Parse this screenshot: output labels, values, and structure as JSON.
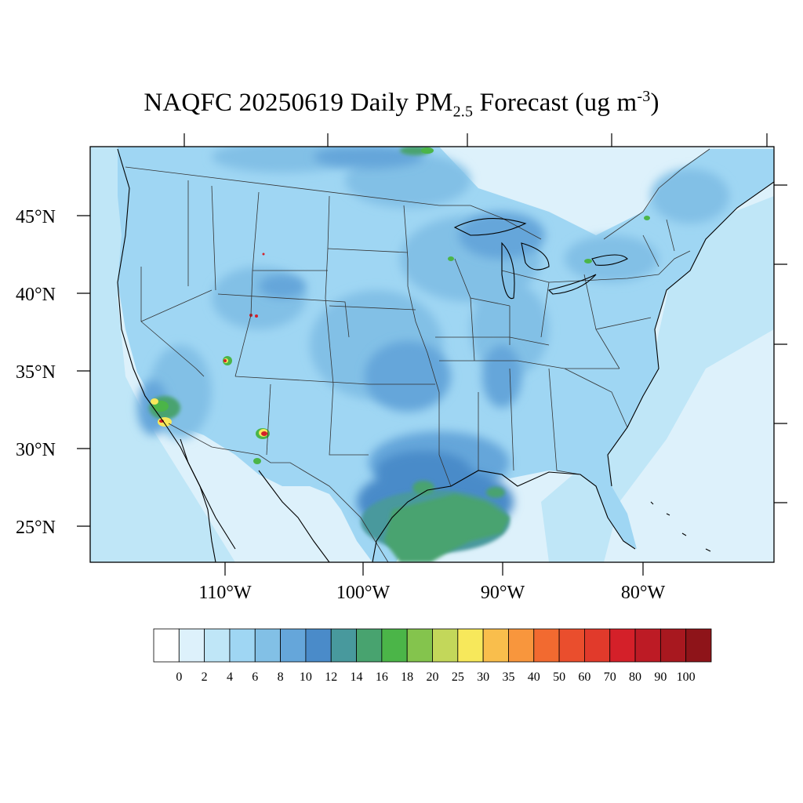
{
  "title": {
    "main": "NAQFC 20250619 Daily PM",
    "sub": "2.5",
    "mid": " Forecast (ug m",
    "sup": "-3",
    "end": ")"
  },
  "lat_labels": [
    "45°N",
    "40°N",
    "35°N",
    "30°N",
    "25°N"
  ],
  "lon_labels": [
    "110°W",
    "100°W",
    "90°W",
    "80°W"
  ],
  "colorbar": {
    "levels": [
      "0",
      "2",
      "4",
      "6",
      "8",
      "10",
      "12",
      "14",
      "16",
      "18",
      "20",
      "25",
      "30",
      "35",
      "40",
      "50",
      "60",
      "70",
      "80",
      "90",
      "100"
    ],
    "colors": [
      "#ffffff",
      "#ddf1fb",
      "#bfe6f7",
      "#9fd6f3",
      "#82c0e6",
      "#65a6da",
      "#4a8bc9",
      "#48999d",
      "#48a36f",
      "#4bb548",
      "#84c44d",
      "#c3d75a",
      "#f7e85b",
      "#f9be4c",
      "#f8963d",
      "#f26a30",
      "#ea4e2d",
      "#e13a2b",
      "#d42029",
      "#bd1b25",
      "#a8181f",
      "#8e1419"
    ]
  },
  "map_colors": {
    "ocean": "#ddf1fb",
    "land_base": "#9fd6f3",
    "moderate": "#82c0e6",
    "elevated": "#65a6da",
    "high": "#4a8bc9",
    "teal": "#48999d",
    "green": "#48a36f",
    "bright_green": "#4bb548",
    "yellow": "#f7e85b",
    "red": "#d42029",
    "borders": "#333333"
  }
}
